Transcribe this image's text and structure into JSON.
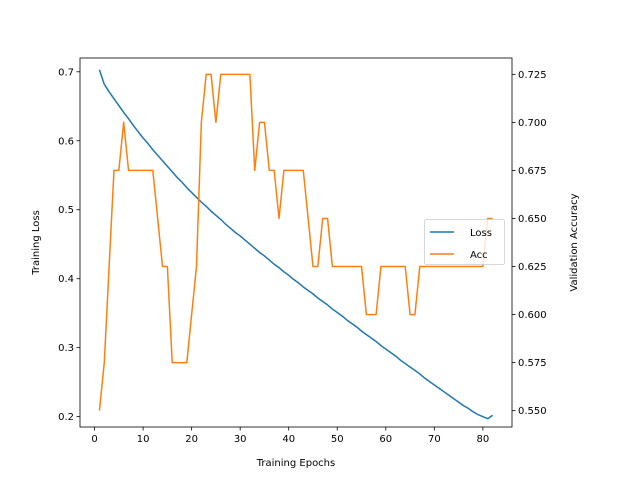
{
  "chart_data": {
    "type": "line",
    "title": "",
    "xlabel": "Training Epochs",
    "ylabel_left": "Training Loss",
    "ylabel_right": "Validation Accuracy",
    "xlim": [
      -3,
      86
    ],
    "ylim_left": [
      0.185,
      0.72
    ],
    "ylim_right": [
      0.5415,
      0.7335
    ],
    "x_ticks": [
      0,
      10,
      20,
      30,
      40,
      50,
      60,
      70,
      80
    ],
    "x_tick_labels": [
      "0",
      "10",
      "20",
      "30",
      "40",
      "50",
      "60",
      "70",
      "80"
    ],
    "y_left_ticks": [
      0.2,
      0.3,
      0.4,
      0.5,
      0.6,
      0.7
    ],
    "y_left_tick_labels": [
      "0.2",
      "0.3",
      "0.4",
      "0.5",
      "0.6",
      "0.7"
    ],
    "y_right_ticks": [
      0.55,
      0.575,
      0.6,
      0.625,
      0.65,
      0.675,
      0.7,
      0.725
    ],
    "y_right_tick_labels": [
      "0.550",
      "0.575",
      "0.600",
      "0.625",
      "0.650",
      "0.675",
      "0.700",
      "0.725"
    ],
    "grid": false,
    "legend_position": "center-right",
    "series": [
      {
        "name": "Loss",
        "axis": "left",
        "color": "#1f77b4",
        "x_start": 1,
        "x_end": 82,
        "values": [
          0.703,
          0.682,
          0.671,
          0.661,
          0.651,
          0.641,
          0.632,
          0.622,
          0.613,
          0.604,
          0.596,
          0.587,
          0.579,
          0.571,
          0.563,
          0.555,
          0.547,
          0.54,
          0.532,
          0.525,
          0.518,
          0.511,
          0.505,
          0.498,
          0.492,
          0.486,
          0.479,
          0.473,
          0.467,
          0.462,
          0.456,
          0.45,
          0.444,
          0.438,
          0.433,
          0.427,
          0.421,
          0.416,
          0.41,
          0.405,
          0.399,
          0.394,
          0.388,
          0.383,
          0.378,
          0.372,
          0.367,
          0.362,
          0.356,
          0.351,
          0.346,
          0.34,
          0.335,
          0.33,
          0.324,
          0.319,
          0.314,
          0.309,
          0.303,
          0.298,
          0.293,
          0.288,
          0.282,
          0.277,
          0.272,
          0.267,
          0.262,
          0.256,
          0.251,
          0.246,
          0.241,
          0.236,
          0.231,
          0.226,
          0.221,
          0.216,
          0.212,
          0.207,
          0.203,
          0.2,
          0.197,
          0.202
        ]
      },
      {
        "name": "Acc",
        "axis": "right",
        "color": "#ff7f0e",
        "x_start": 1,
        "x_end": 82,
        "values": [
          0.55,
          0.575,
          0.625,
          0.675,
          0.675,
          0.7,
          0.675,
          0.675,
          0.675,
          0.675,
          0.675,
          0.675,
          0.65,
          0.625,
          0.625,
          0.575,
          0.575,
          0.575,
          0.575,
          0.6,
          0.625,
          0.7,
          0.725,
          0.725,
          0.7,
          0.725,
          0.725,
          0.725,
          0.725,
          0.725,
          0.725,
          0.725,
          0.675,
          0.7,
          0.7,
          0.675,
          0.675,
          0.65,
          0.675,
          0.675,
          0.675,
          0.675,
          0.675,
          0.65,
          0.625,
          0.625,
          0.65,
          0.65,
          0.625,
          0.625,
          0.625,
          0.625,
          0.625,
          0.625,
          0.625,
          0.6,
          0.6,
          0.6,
          0.625,
          0.625,
          0.625,
          0.625,
          0.625,
          0.625,
          0.6,
          0.6,
          0.625,
          0.625,
          0.625,
          0.625,
          0.625,
          0.625,
          0.625,
          0.625,
          0.625,
          0.625,
          0.625,
          0.625,
          0.625,
          0.625,
          0.65,
          0.65
        ]
      }
    ]
  }
}
